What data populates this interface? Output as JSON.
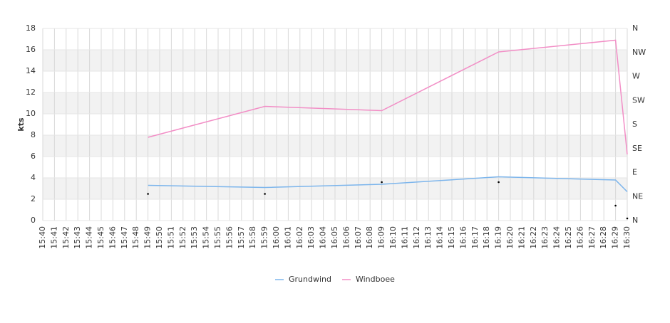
{
  "chart_data": {
    "type": "line",
    "y_label": "kts",
    "categories": [
      "15:40",
      "15:41",
      "15:42",
      "15:43",
      "15:44",
      "15:45",
      "15:46",
      "15:47",
      "15:48",
      "15:49",
      "15:50",
      "15:51",
      "15:52",
      "15:53",
      "15:54",
      "15:55",
      "15:56",
      "15:57",
      "15:58",
      "15:59",
      "16:00",
      "16:01",
      "16:02",
      "16:03",
      "16:04",
      "16:05",
      "16:06",
      "16:07",
      "16:08",
      "16:09",
      "16:10",
      "16:11",
      "16:12",
      "16:13",
      "16:14",
      "16:15",
      "16:16",
      "16:17",
      "16:18",
      "16:19",
      "16:20",
      "16:21",
      "16:22",
      "16:23",
      "16:24",
      "16:25",
      "16:26",
      "16:27",
      "16:28",
      "16:29",
      "16:30"
    ],
    "series": [
      {
        "name": "Grundwind",
        "color": "#7cb5ec",
        "x": [
          "15:49",
          "15:59",
          "16:09",
          "16:19",
          "16:29",
          "16:30"
        ],
        "values": [
          3.3,
          3.1,
          3.4,
          4.1,
          3.8,
          2.7
        ]
      },
      {
        "name": "Windboee",
        "color": "#f28ec6",
        "x": [
          "15:49",
          "15:59",
          "16:09",
          "16:19",
          "16:29",
          "16:30"
        ],
        "values": [
          7.8,
          10.7,
          10.3,
          15.8,
          16.9,
          6.2
        ]
      },
      {
        "color": "#000000",
        "axis": "y2",
        "markers_only": true,
        "x": [
          "15:49",
          "15:59",
          "16:09",
          "16:19",
          "16:29",
          "16:30"
        ],
        "values": [
          50,
          50,
          72,
          72,
          28,
          4
        ]
      }
    ],
    "ylim": [
      0,
      18
    ],
    "yticks": [
      0,
      2,
      4,
      6,
      8,
      10,
      12,
      14,
      16,
      18
    ],
    "y2lim": [
      0,
      360
    ],
    "y2ticks": [
      {
        "value": 0,
        "label": "N"
      },
      {
        "value": 45,
        "label": "NE"
      },
      {
        "value": 90,
        "label": "E"
      },
      {
        "value": 135,
        "label": "SE"
      },
      {
        "value": 180,
        "label": "S"
      },
      {
        "value": 225,
        "label": "SW"
      },
      {
        "value": 270,
        "label": "W"
      },
      {
        "value": 315,
        "label": "NW"
      },
      {
        "value": 360,
        "label": "N"
      }
    ],
    "grid": true,
    "band_color": "#f2f2f2",
    "legend": "bottom"
  }
}
